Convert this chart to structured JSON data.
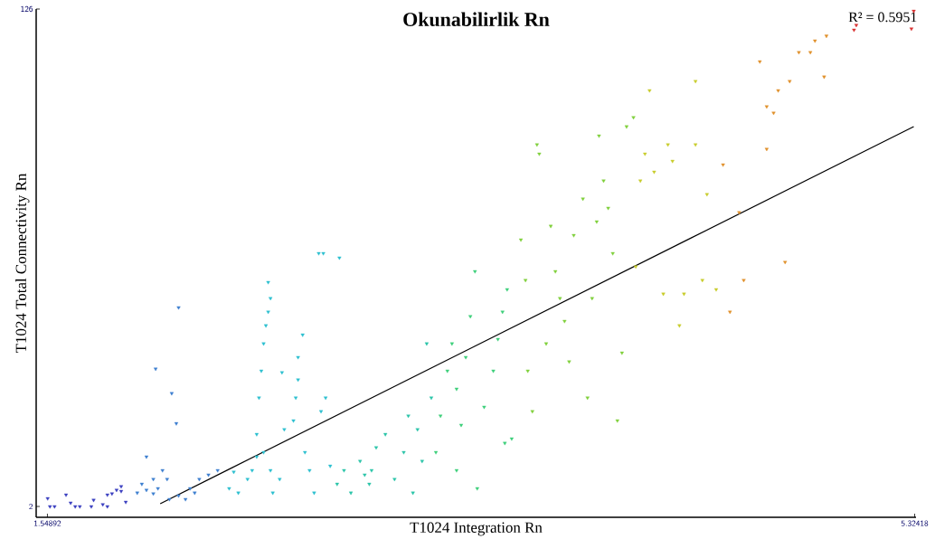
{
  "chart_data": {
    "type": "scatter",
    "title": "Okunabilirlik Rn",
    "xlabel": "T1024 Integration Rn",
    "ylabel": "T1024 Total Connectivity Rn",
    "annotations": [
      "R² = 0.5951"
    ],
    "marker": "triangle",
    "xlim": [
      1.5,
      5.33
    ],
    "ylim": [
      -0.7,
      126
    ],
    "xticks": [
      1.54892,
      5.32418
    ],
    "yticks": [
      2,
      126
    ],
    "series": [
      {
        "color": "#3a3fc0",
        "x": [
          1.55,
          1.56,
          1.58,
          1.63,
          1.65,
          1.67,
          1.69,
          1.74,
          1.75,
          1.79,
          1.81,
          1.81,
          1.83,
          1.85,
          1.87,
          1.87,
          1.89
        ],
        "values": [
          4.0,
          2.0,
          2.0,
          4.9,
          2.9,
          2.0,
          2.0,
          2.0,
          3.6,
          2.5,
          2.0,
          4.9,
          5.2,
          6.1,
          7.0,
          5.8,
          3.1
        ]
      },
      {
        "color": "#3d7fd0",
        "x": [
          1.94,
          1.96,
          1.98,
          2.01,
          2.01,
          2.03,
          2.05,
          2.07,
          2.08,
          1.98,
          2.02,
          2.09,
          2.11,
          2.12,
          2.12,
          2.17,
          2.19,
          2.21,
          2.25,
          2.29,
          2.15
        ],
        "values": [
          5.4,
          7.6,
          6.1,
          5.2,
          8.8,
          6.5,
          11.0,
          8.8,
          3.8,
          14.4,
          36.3,
          30.2,
          22.7,
          51.6,
          4.7,
          6.5,
          5.4,
          8.8,
          9.9,
          11.0,
          3.8
        ]
      },
      {
        "color": "#2cbfd0",
        "x": [
          2.34,
          2.36,
          2.38,
          2.42,
          2.44,
          2.46,
          2.47,
          2.48,
          2.49,
          2.5,
          2.51,
          2.52,
          2.51,
          2.46,
          2.49,
          2.52,
          2.53,
          2.56,
          2.57,
          2.58,
          2.62,
          2.63,
          2.64,
          2.64,
          2.66,
          2.67,
          2.69,
          2.71,
          2.73,
          2.75,
          2.74,
          2.76,
          2.78,
          2.82
        ],
        "values": [
          6.5,
          10.6,
          5.4,
          8.8,
          11.0,
          14.4,
          29.1,
          35.8,
          42.6,
          47.1,
          50.5,
          53.9,
          57.9,
          20.0,
          15.5,
          11.0,
          5.4,
          8.8,
          35.4,
          21.2,
          23.4,
          29.1,
          33.6,
          39.2,
          44.8,
          15.5,
          11.0,
          5.4,
          65.1,
          65.1,
          25.7,
          29.1,
          12.1,
          64.0
        ]
      },
      {
        "color": "#2ac4a8",
        "x": [
          2.81,
          2.84,
          2.87,
          2.91,
          2.93,
          2.95,
          2.96,
          2.98,
          3.02,
          3.06,
          3.1,
          3.12,
          3.14,
          3.16,
          3.18,
          3.2,
          3.22
        ],
        "values": [
          7.6,
          11.0,
          5.4,
          13.3,
          9.9,
          7.6,
          11.0,
          16.7,
          20.0,
          8.8,
          15.5,
          24.6,
          5.4,
          21.2,
          13.3,
          42.6,
          29.1
        ]
      },
      {
        "color": "#3ccf7a",
        "x": [
          3.24,
          3.26,
          3.29,
          3.31,
          3.33,
          3.33,
          3.35,
          3.37,
          3.39,
          3.41,
          3.42,
          3.45,
          3.49,
          3.51,
          3.53,
          3.55,
          3.57,
          3.54
        ],
        "values": [
          15.5,
          24.6,
          35.8,
          42.6,
          31.3,
          11.0,
          22.3,
          39.2,
          49.4,
          60.6,
          6.5,
          26.8,
          35.8,
          43.7,
          50.5,
          56.1,
          18.9,
          17.8
        ]
      },
      {
        "color": "#7fd03a",
        "x": [
          3.61,
          3.63,
          3.64,
          3.66,
          3.68,
          3.69,
          3.72,
          3.74,
          3.76,
          3.78,
          3.8,
          3.82,
          3.84,
          3.88,
          3.9,
          3.92,
          3.94,
          3.95,
          3.97,
          3.99,
          4.01,
          4.03,
          4.05,
          4.07,
          4.1
        ],
        "values": [
          68.5,
          58.4,
          35.8,
          25.7,
          92.2,
          89.9,
          42.6,
          71.9,
          60.6,
          53.9,
          48.2,
          38.1,
          69.6,
          78.7,
          29.1,
          53.9,
          73.0,
          94.4,
          83.2,
          76.4,
          65.1,
          23.4,
          40.3,
          96.7,
          99.0
        ]
      },
      {
        "color": "#c8cc2a",
        "x": [
          4.11,
          4.13,
          4.15,
          4.17,
          4.19,
          4.23,
          4.25,
          4.27,
          4.3,
          4.32,
          4.37,
          4.37,
          4.4,
          4.42,
          4.46
        ],
        "values": [
          61.8,
          83.2,
          89.9,
          105.7,
          85.4,
          55.0,
          92.2,
          88.1,
          47.1,
          55.0,
          92.2,
          108.0,
          58.4,
          79.8,
          56.1
        ]
      },
      {
        "color": "#e0902a",
        "x": [
          4.49,
          4.52,
          4.56,
          4.58,
          4.65,
          4.68,
          4.68,
          4.71,
          4.73,
          4.76,
          4.78,
          4.82,
          4.87,
          4.89,
          4.93,
          4.94
        ],
        "values": [
          87.2,
          50.5,
          75.3,
          58.4,
          112.9,
          91.1,
          101.7,
          100.1,
          105.7,
          62.9,
          108.0,
          115.2,
          115.2,
          118.1,
          109.1,
          119.3
        ]
      },
      {
        "color": "#d83030",
        "x": [
          5.06,
          5.07,
          5.31,
          5.32
        ],
        "values": [
          120.8,
          122.0,
          121.1,
          125.5
        ]
      },
      {
        "type": "line",
        "marker": "none",
        "color": "#000000",
        "x": [
          2.04,
          5.32
        ],
        "values": [
          2.7,
          96.7
        ]
      }
    ]
  }
}
